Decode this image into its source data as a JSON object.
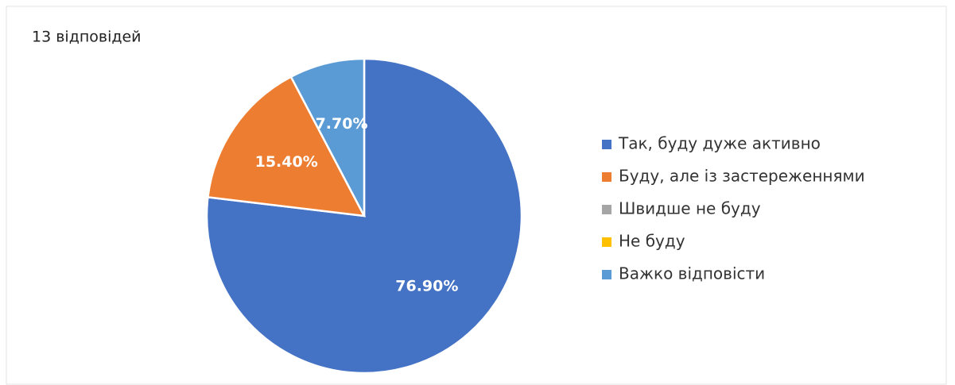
{
  "chart_data": {
    "type": "pie",
    "title": "13 відповідей",
    "categories": [
      "Так, буду дуже активно",
      "Буду, але із застереженнями",
      "Швидше не буду",
      "Не буду",
      "Важко відповісти"
    ],
    "values": [
      76.9,
      15.4,
      0,
      0,
      7.7
    ],
    "value_labels": [
      "76.90%",
      "15.40%",
      null,
      null,
      "7.70%"
    ],
    "colors": [
      "#4472c4",
      "#ed7d31",
      "#a5a5a5",
      "#ffc000",
      "#5b9bd5"
    ],
    "legend": "right"
  }
}
